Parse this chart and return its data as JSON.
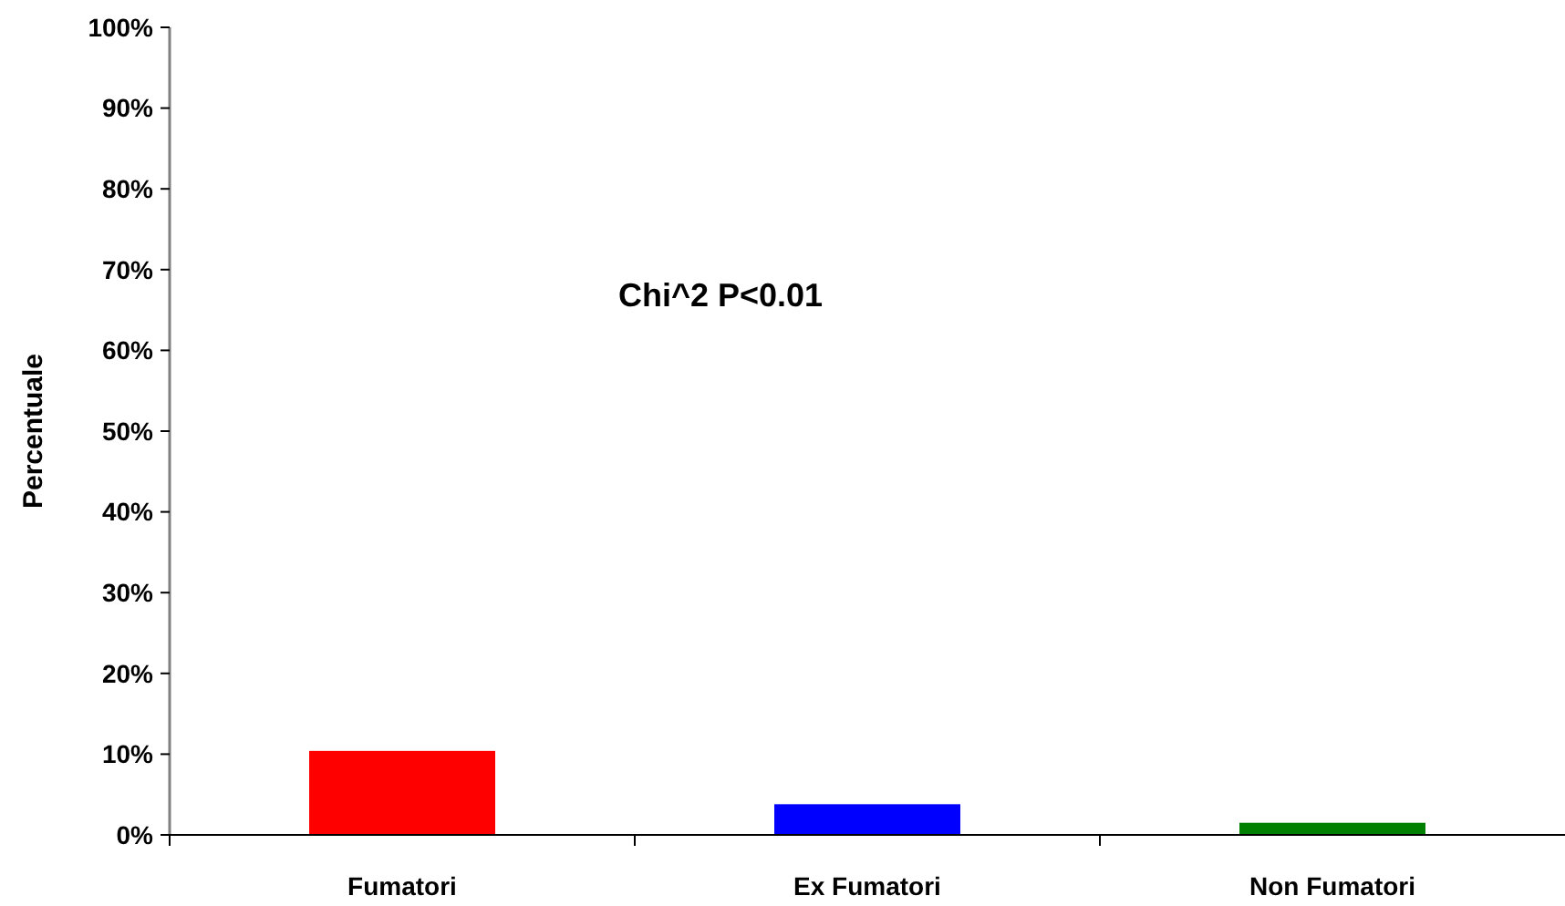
{
  "chart_data": {
    "type": "bar",
    "ylabel": "Percentuale",
    "categories": [
      "Fumatori",
      "Ex Fumatori",
      "Non Fumatori"
    ],
    "values": [
      10.4,
      3.8,
      1.5
    ],
    "colors": [
      "#ff0000",
      "#0000ff",
      "#008000"
    ],
    "ylim": [
      0,
      100
    ],
    "yticks": [
      {
        "value": 0,
        "label": "0%"
      },
      {
        "value": 10,
        "label": "10%"
      },
      {
        "value": 20,
        "label": "20%"
      },
      {
        "value": 30,
        "label": "30%"
      },
      {
        "value": 40,
        "label": "40%"
      },
      {
        "value": 50,
        "label": "50%"
      },
      {
        "value": 60,
        "label": "60%"
      },
      {
        "value": 70,
        "label": "70%"
      },
      {
        "value": 80,
        "label": "80%"
      },
      {
        "value": 90,
        "label": "90%"
      },
      {
        "value": 100,
        "label": "100%"
      }
    ],
    "annotations": [
      "Chi^2 P<0.01"
    ]
  }
}
